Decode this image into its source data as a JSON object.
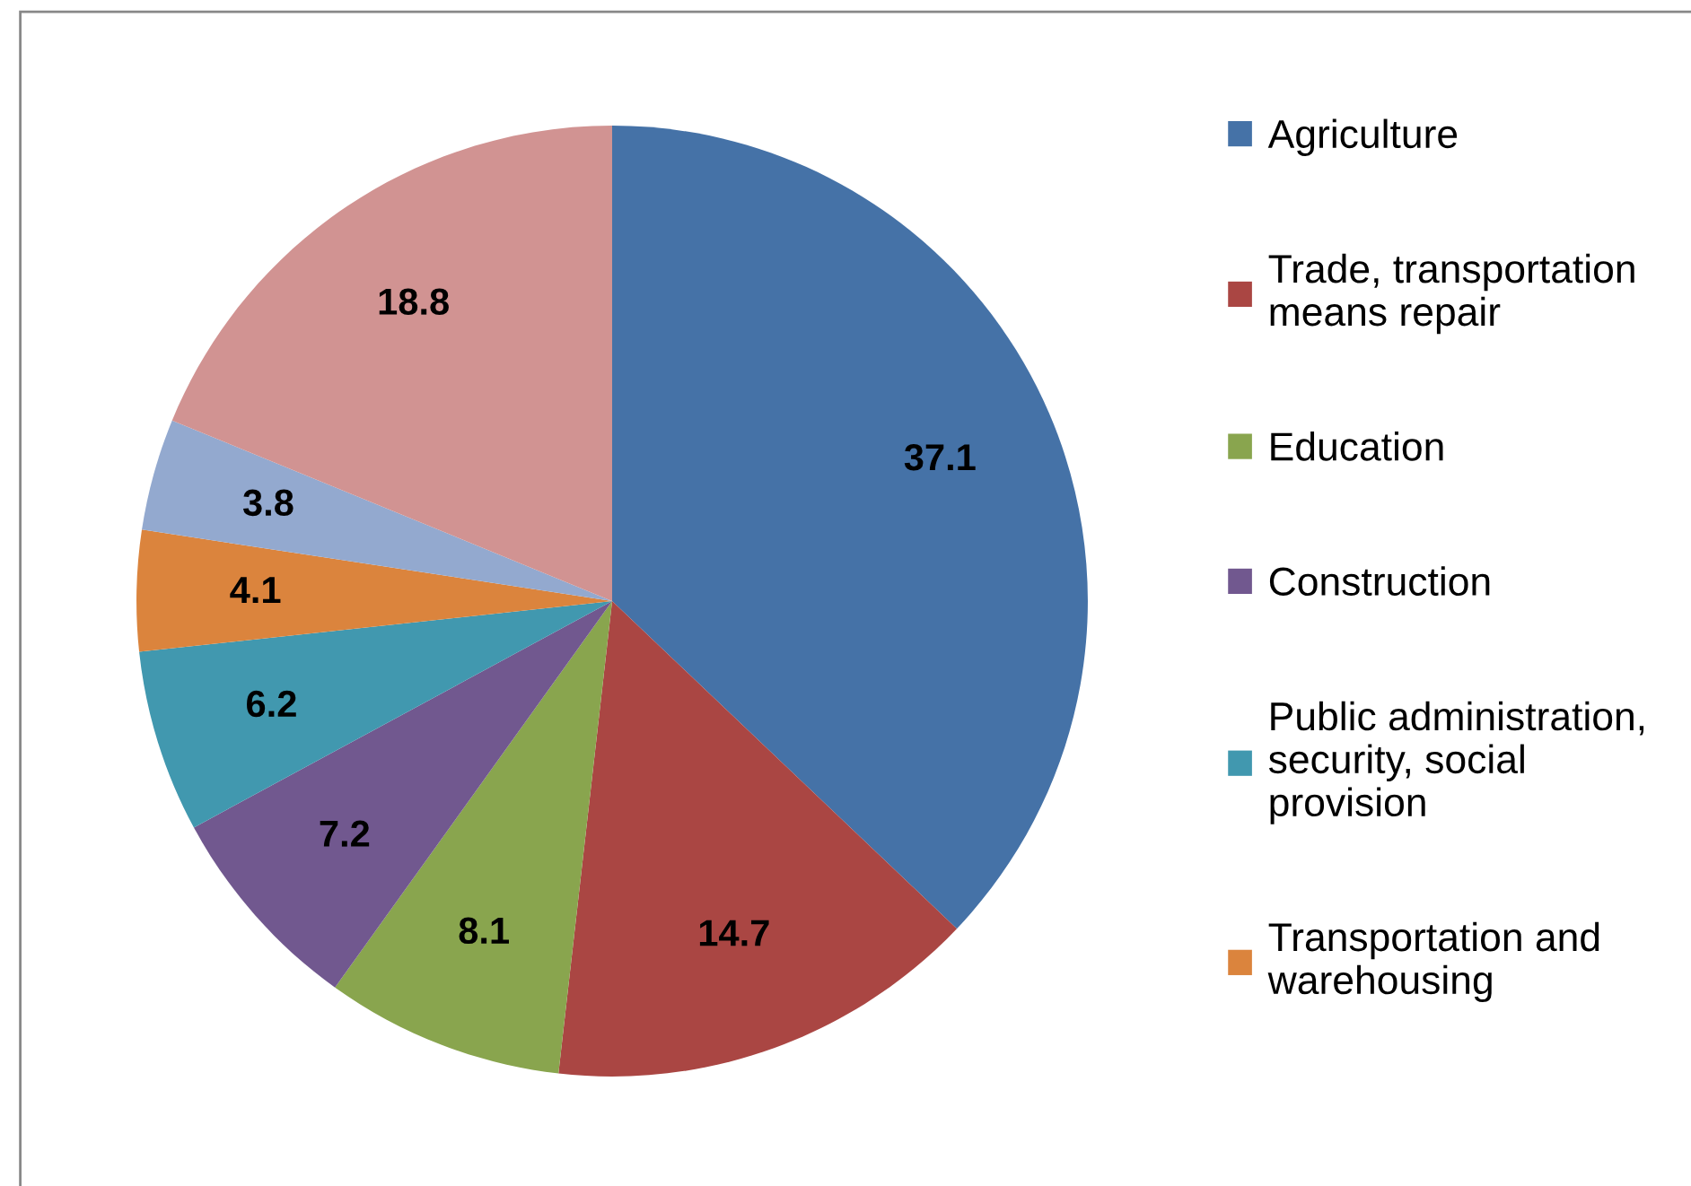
{
  "chart_data": {
    "type": "pie",
    "categories": [
      "Agriculture",
      "Trade, transportation\nmeans repair",
      "Education",
      "Construction",
      "Public administration,\nsecurity, social\nprovision",
      "Transportation and\nwarehousing",
      null,
      null
    ],
    "values": [
      37.1,
      14.7,
      8.1,
      7.2,
      6.2,
      4.1,
      3.8,
      18.8
    ],
    "colors": [
      "#4572a7",
      "#aa4643",
      "#89a54e",
      "#71588f",
      "#4198af",
      "#db843d",
      "#93a9cf",
      "#d19392"
    ],
    "data_labels": true,
    "legend": "right"
  }
}
